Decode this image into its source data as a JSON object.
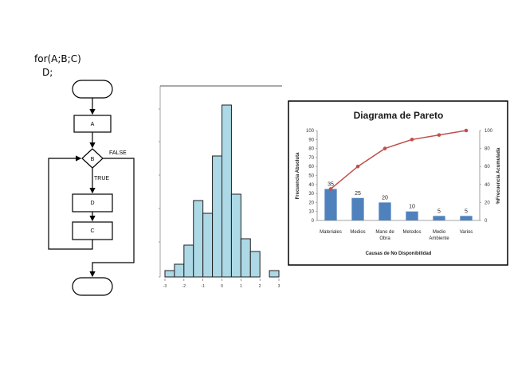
{
  "code": {
    "line1": "for(A;B;C)",
    "line2": "D;"
  },
  "flowchart": {
    "node_a": "A",
    "node_b": "B",
    "node_d": "D",
    "node_c": "C",
    "true_label": "TRUE",
    "false_label": "FALSE"
  },
  "chart_data": [
    {
      "type": "bar",
      "x_ticks": [
        "-3",
        "-2",
        "-1",
        "0",
        "1",
        "2",
        "3"
      ],
      "bins": [
        {
          "start": -3.0,
          "end": -2.5,
          "count": 1
        },
        {
          "start": -2.5,
          "end": -2.0,
          "count": 2
        },
        {
          "start": -2.0,
          "end": -1.5,
          "count": 5
        },
        {
          "start": -1.5,
          "end": -1.0,
          "count": 12
        },
        {
          "start": -1.0,
          "end": -0.5,
          "count": 10
        },
        {
          "start": -0.5,
          "end": 0.0,
          "count": 19
        },
        {
          "start": 0.0,
          "end": 0.5,
          "count": 27
        },
        {
          "start": 0.5,
          "end": 1.0,
          "count": 13
        },
        {
          "start": 1.0,
          "end": 1.5,
          "count": 6
        },
        {
          "start": 1.5,
          "end": 2.0,
          "count": 4
        },
        {
          "start": 2.5,
          "end": 3.0,
          "count": 1
        }
      ],
      "xlim": [
        -3.0,
        3.0
      ],
      "ylim": [
        0,
        30
      ]
    },
    {
      "type": "bar",
      "title": "Diagrama de Pareto",
      "xlabel": "Causas de No Disponibilidad",
      "ylabel": "Frecuencia Absoluta",
      "y2label": "%Frecuencia Acumulada",
      "categories": [
        [
          "Materiales"
        ],
        [
          "Medios"
        ],
        [
          "Mano de",
          "Obra"
        ],
        [
          "Metodos"
        ],
        [
          "Medio",
          "Ambiente"
        ],
        [
          "Varios"
        ]
      ],
      "values": [
        35,
        25,
        20,
        10,
        5,
        5
      ],
      "cumulative": [
        35,
        60,
        80,
        90,
        95,
        100
      ],
      "ylim": [
        0,
        100
      ],
      "y2lim": [
        0,
        100
      ],
      "y_ticks": [
        0,
        10,
        20,
        30,
        40,
        50,
        60,
        70,
        80,
        90,
        100
      ],
      "y2_ticks": [
        0,
        20,
        40,
        60,
        80,
        100
      ],
      "bar_color": "#4f81bd",
      "line_color": "#c0504d"
    }
  ]
}
